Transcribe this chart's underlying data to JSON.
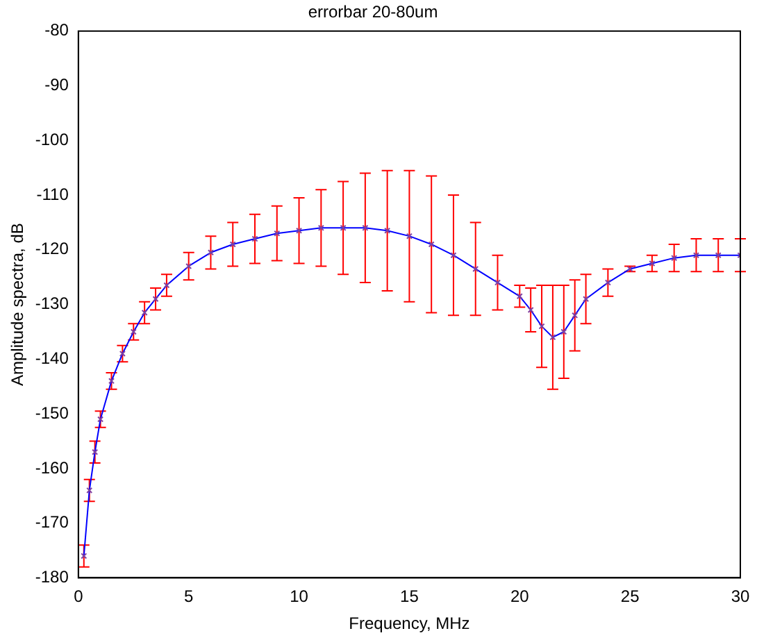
{
  "chart_data": {
    "type": "line",
    "title": "errorbar 20-80um",
    "xlabel": "Frequency, MHz",
    "ylabel": "Amplitude spectra, dB",
    "xlim": [
      0,
      30
    ],
    "xticks": [
      0,
      5,
      10,
      15,
      20,
      25,
      30
    ],
    "ylim": [
      -180,
      -80
    ],
    "yticks": [
      -180,
      -170,
      -160,
      -150,
      -140,
      -130,
      -120,
      -110,
      -100,
      -90,
      -80
    ],
    "grid": false,
    "marker": "cross",
    "line_style": "solid",
    "series": [
      {
        "color": "#0000ff",
        "x": [
          0.25,
          0.5,
          0.75,
          1,
          1.5,
          2,
          2.5,
          3,
          3.5,
          4,
          5,
          6,
          7,
          8,
          9,
          10,
          11,
          12,
          13,
          14,
          15,
          16,
          17,
          18,
          19,
          20,
          20.5,
          21,
          21.5,
          22,
          22.5,
          23,
          24,
          25,
          26,
          27,
          28,
          29,
          30
        ],
        "values": [
          -176,
          -164,
          -157,
          -151,
          -144,
          -139,
          -135,
          -131.5,
          -129,
          -126.5,
          -123,
          -120.5,
          -119,
          -118,
          -117,
          -116.5,
          -116,
          -116,
          -116,
          -116.5,
          -117.5,
          -119,
          -121,
          -123.5,
          -126,
          -128.5,
          -131,
          -134,
          -136,
          -135,
          -132,
          -129,
          -126,
          -123.5,
          -122.5,
          -121.5,
          -121,
          -121,
          -121
        ],
        "errors": [
          2,
          2,
          2,
          1.5,
          1.5,
          1.5,
          1.5,
          2,
          2,
          2,
          2.5,
          3,
          4,
          4.5,
          5,
          6,
          7,
          8.5,
          10,
          11,
          12,
          12.5,
          11,
          8.5,
          5,
          2,
          4,
          7.5,
          9.5,
          8.5,
          6.5,
          4.5,
          2.5,
          0.5,
          1.5,
          2.5,
          3,
          3,
          3
        ]
      }
    ]
  }
}
